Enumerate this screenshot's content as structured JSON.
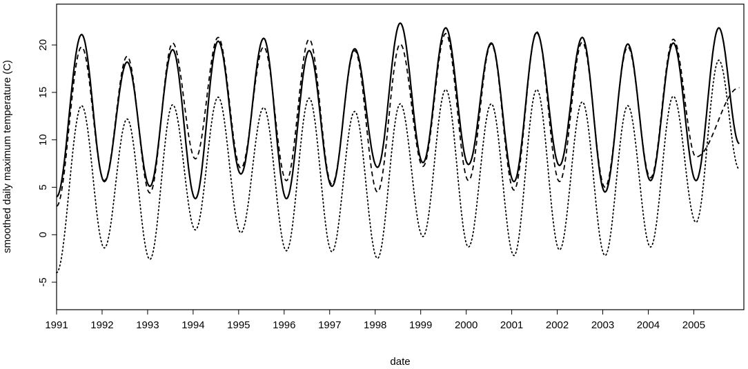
{
  "chart_data": {
    "type": "line",
    "title": "",
    "xlabel": "date",
    "ylabel": "smoothed daily maximum temperature (C)",
    "xlim": [
      1991,
      2006.1
    ],
    "ylim": [
      -7.9,
      24.3
    ],
    "x_ticks": [
      1991,
      1992,
      1993,
      1994,
      1995,
      1996,
      1997,
      1998,
      1999,
      2000,
      2001,
      2002,
      2003,
      2004,
      2005
    ],
    "x_tick_labels": [
      "1991",
      "1992",
      "1993",
      "1994",
      "1995",
      "1996",
      "1997",
      "1998",
      "1999",
      "2000",
      "2001",
      "2002",
      "2003",
      "2004",
      "2005"
    ],
    "y_ticks": [
      -5,
      0,
      5,
      10,
      15,
      20
    ],
    "y_tick_labels": [
      "-5",
      "0",
      "5",
      "10",
      "15",
      "20"
    ],
    "grid": false,
    "legend": "none",
    "series": [
      {
        "line_style": "solid",
        "color": "#000000",
        "start": 4.0,
        "end": 9.6,
        "peaks": [
          21.1,
          18.2,
          19.5,
          20.4,
          20.7,
          19.4,
          19.6,
          22.3,
          21.8,
          20.2,
          21.3,
          20.8,
          20.1,
          20.2,
          21.8
        ],
        "troughs": [
          5.6,
          5.1,
          3.8,
          6.4,
          3.8,
          5.1,
          7.1,
          7.6,
          7.4,
          5.6,
          7.3,
          4.5,
          5.7,
          5.7
        ]
      },
      {
        "line_style": "dashed",
        "color": "#000000",
        "start": 3.0,
        "end": 15.5,
        "peaks": [
          19.8,
          18.8,
          20.2,
          20.8,
          19.8,
          20.6,
          19.4,
          20.1,
          21.2,
          20.1,
          21.4,
          20.3,
          19.8,
          20.6
        ],
        "troughs": [
          5.7,
          4.4,
          8.0,
          7.0,
          5.7,
          5.3,
          4.5,
          7.2,
          5.7,
          4.7,
          5.6,
          5.0,
          6.0,
          8.2
        ]
      },
      {
        "line_style": "dotted",
        "color": "#000000",
        "start": -4.0,
        "end": 6.9,
        "peaks": [
          13.6,
          12.2,
          13.7,
          14.5,
          13.4,
          14.4,
          13.0,
          13.8,
          15.3,
          13.8,
          15.3,
          14.0,
          13.6,
          14.6,
          18.4
        ],
        "troughs": [
          -1.4,
          -2.6,
          0.5,
          0.2,
          -1.7,
          -1.8,
          -2.5,
          -0.2,
          -1.3,
          -2.2,
          -1.6,
          -2.2,
          -1.3,
          1.3
        ]
      }
    ]
  }
}
